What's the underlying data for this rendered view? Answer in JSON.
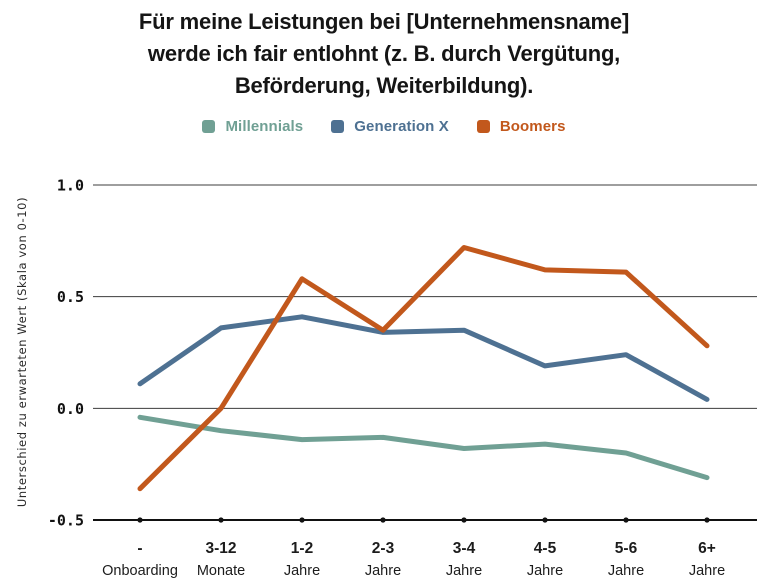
{
  "header": {
    "title_lines": [
      "Für meine Leistungen bei [Unternehmensname]",
      "werde ich fair entlohnt (z. B. durch Vergütung,",
      "Beförderung, Weiterbildung)."
    ]
  },
  "chart_data": {
    "type": "line",
    "title": "Für meine Leistungen bei [Unternehmensname] werde ich fair entlohnt (z. B. durch Vergütung, Beförderung, Weiterbildung).",
    "ylabel": "Unterschied zu erwarteten Wert (Skala von 0-10)",
    "ylim": [
      -0.5,
      1.0
    ],
    "yticks": [
      1.0,
      0.5,
      0.0,
      -0.5
    ],
    "ytick_labels": [
      "1.0",
      "0.5",
      "0.0",
      "-0.5"
    ],
    "grid": true,
    "legend_position": "top",
    "categories_line1": [
      "-",
      "3-12",
      "1-2",
      "2-3",
      "3-4",
      "4-5",
      "5-6",
      "6+"
    ],
    "categories_line2": [
      "Onboarding",
      "Monate",
      "Jahre",
      "Jahre",
      "Jahre",
      "Jahre",
      "Jahre",
      "Jahre"
    ],
    "series": [
      {
        "name": "Millennials",
        "color": "#70a094",
        "values": [
          -0.04,
          -0.1,
          -0.14,
          -0.13,
          -0.18,
          -0.16,
          -0.2,
          -0.31
        ]
      },
      {
        "name": "Generation X",
        "color": "#4e7192",
        "values": [
          0.11,
          0.36,
          0.41,
          0.34,
          0.35,
          0.19,
          0.24,
          0.04
        ]
      },
      {
        "name": "Boomers",
        "color": "#c2581c",
        "values": [
          -0.36,
          0.0,
          0.58,
          0.35,
          0.72,
          0.62,
          0.61,
          0.28
        ]
      }
    ],
    "colors": {
      "grid": "#3c3c3c",
      "axis": "#111111",
      "tick_dot": "#111111",
      "title_text": "#151515"
    }
  }
}
